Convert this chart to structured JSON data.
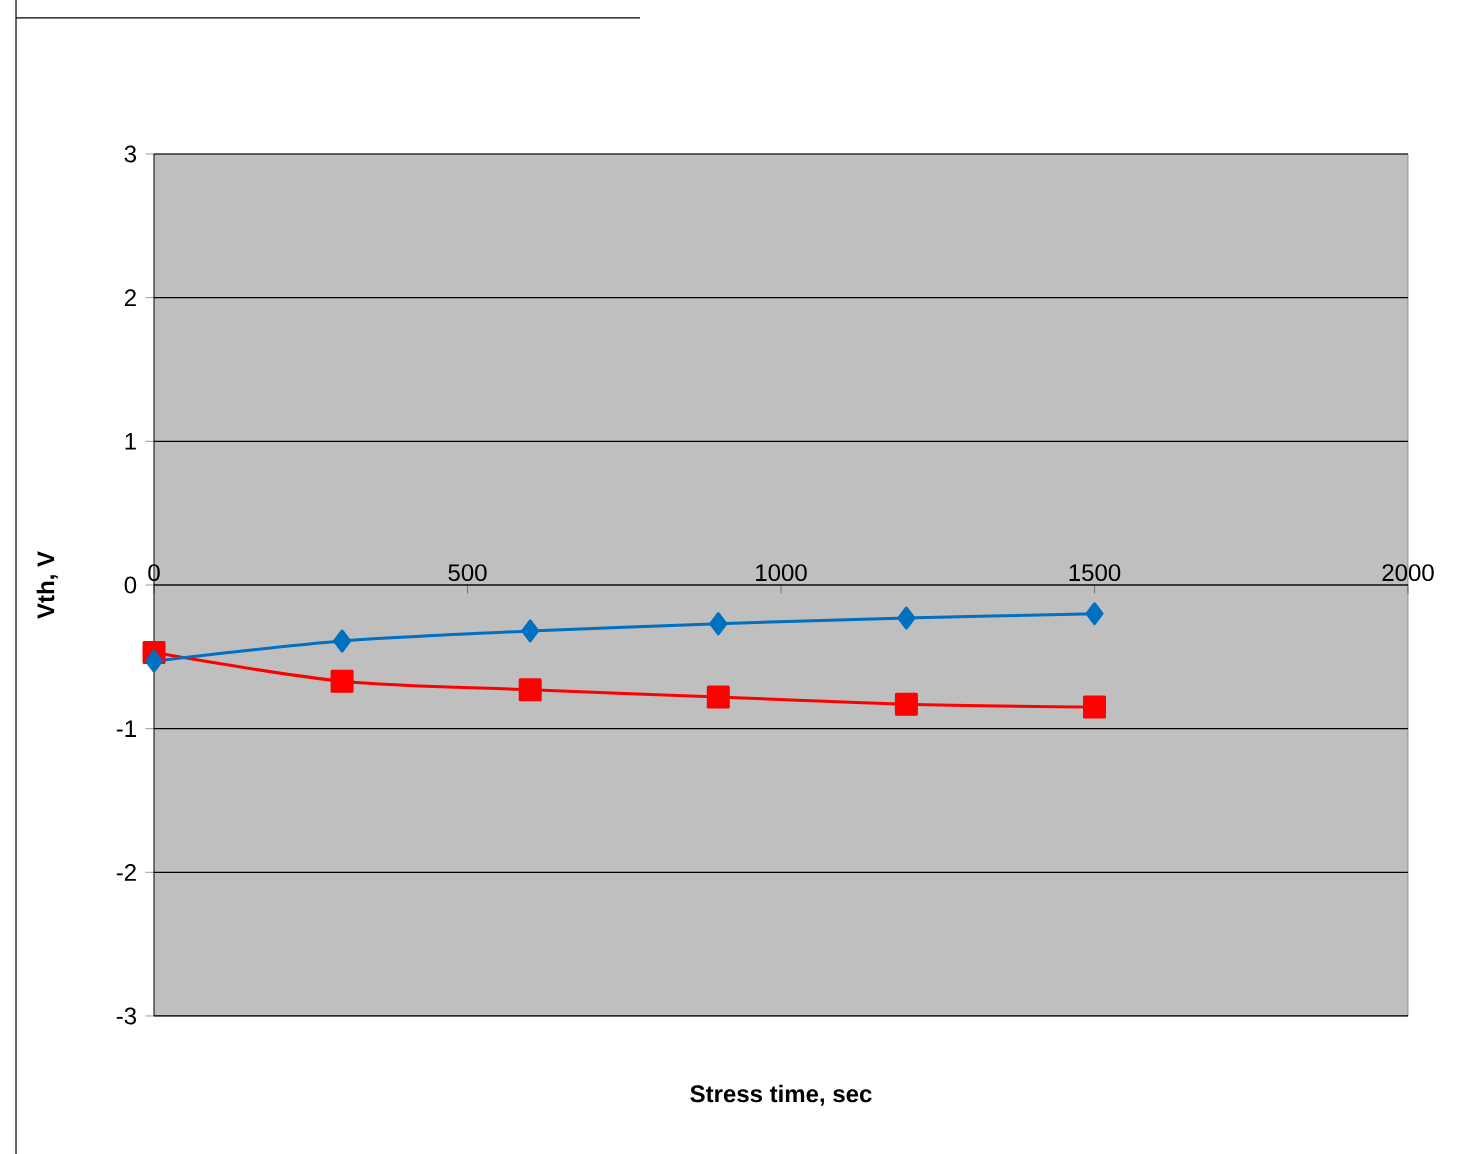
{
  "chart_data": {
    "type": "line",
    "xlabel": "Stress time, sec",
    "ylabel": "Vth, V",
    "x": [
      0,
      300,
      600,
      900,
      1200,
      1500
    ],
    "series": [
      {
        "color": "#0070c0",
        "marker": "diamond",
        "values": [
          -0.53,
          -0.39,
          -0.32,
          -0.27,
          -0.23,
          -0.2
        ]
      },
      {
        "color": "#ff0000",
        "marker": "square",
        "values": [
          -0.47,
          -0.67,
          -0.73,
          -0.78,
          -0.83,
          -0.85
        ]
      }
    ],
    "xlim": [
      0,
      2000
    ],
    "xticks": [
      0,
      500,
      1000,
      1500,
      2000
    ],
    "ylim": [
      -3,
      3
    ],
    "yticks": [
      -3,
      -2,
      -1,
      0,
      1,
      2,
      3
    ],
    "grid": "y"
  }
}
